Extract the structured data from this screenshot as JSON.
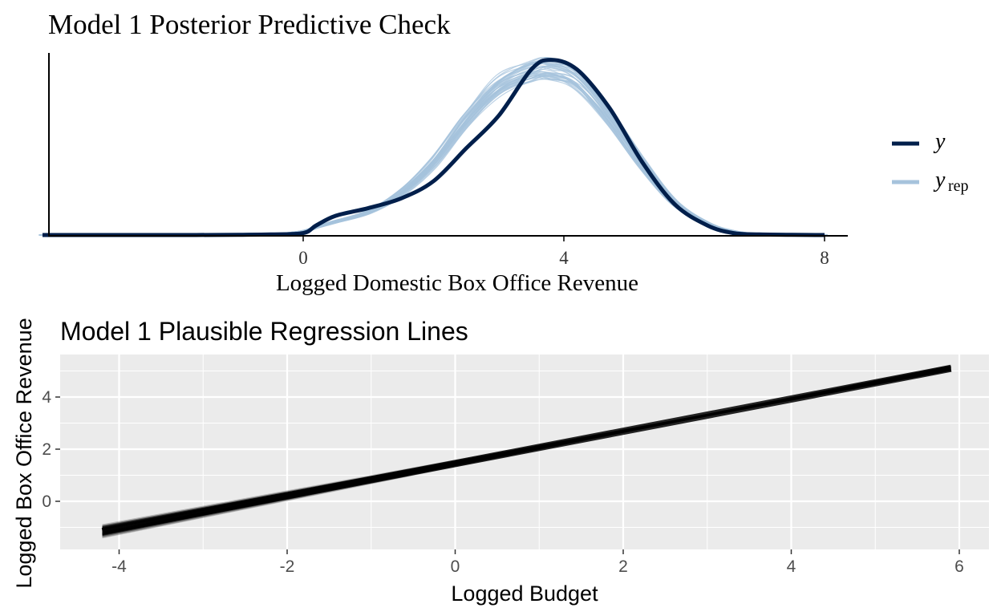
{
  "chart_data": [
    {
      "type": "area",
      "title": "Model 1 Posterior Predictive Check",
      "xlabel": "Logged Domestic Box Office Revenue",
      "ylabel": "",
      "xlim": [
        -4.0,
        8.4
      ],
      "xticks": [
        0,
        4,
        8
      ],
      "x_tick_labels": [
        "0",
        "4",
        "8"
      ],
      "legend_position": "right",
      "legend": [
        {
          "label": "y",
          "color": "#011f4b"
        },
        {
          "label": "y",
          "subscript": "rep",
          "color": "#a6c3dc"
        }
      ],
      "x": [
        -4,
        -3,
        -2,
        -1,
        -0.5,
        0,
        0.2,
        0.5,
        1,
        1.5,
        2,
        2.5,
        3,
        3.5,
        3.8,
        4.2,
        4.7,
        5.2,
        5.7,
        6.2,
        6.6,
        7,
        7.5,
        8
      ],
      "series": [
        {
          "name": "y",
          "color": "#011f4b",
          "values": [
            0,
            0,
            0,
            0.001,
            0.003,
            0.01,
            0.05,
            0.1,
            0.14,
            0.19,
            0.28,
            0.45,
            0.62,
            0.86,
            0.91,
            0.86,
            0.66,
            0.38,
            0.16,
            0.05,
            0.01,
            0.003,
            0.001,
            0
          ]
        },
        {
          "name": "yrep",
          "color": "#a6c3dc",
          "values": [
            0,
            0,
            0,
            0.001,
            0.004,
            0.02,
            0.04,
            0.07,
            0.12,
            0.22,
            0.38,
            0.6,
            0.78,
            0.86,
            0.87,
            0.82,
            0.62,
            0.38,
            0.17,
            0.06,
            0.02,
            0.005,
            0.001,
            0
          ]
        }
      ]
    },
    {
      "type": "line",
      "title": "Model 1 Plausible Regression Lines",
      "xlabel": "Logged Budget",
      "ylabel": "Logged Box Office Revenue",
      "xlim": [
        -4.7,
        6.4
      ],
      "ylim": [
        -1.8,
        5.6
      ],
      "xticks": [
        -4,
        -2,
        0,
        2,
        4,
        6
      ],
      "yticks": [
        0,
        2,
        4
      ],
      "x_tick_labels": [
        "-4",
        "-2",
        "0",
        "2",
        "4",
        "6"
      ],
      "y_tick_labels": [
        "0",
        "2",
        "4"
      ],
      "grid": true,
      "x": [
        -4.2,
        5.9
      ],
      "series": [
        {
          "name": "",
          "values": [
            -1.15,
            5.1
          ]
        }
      ]
    }
  ]
}
